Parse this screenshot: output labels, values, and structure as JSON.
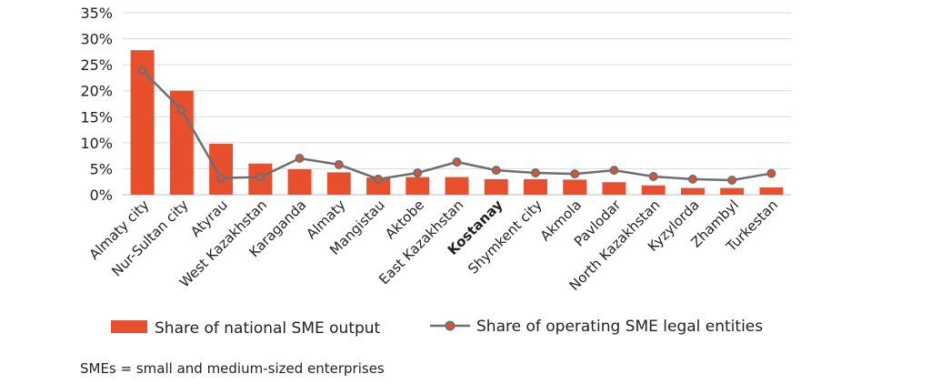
{
  "chart_data": {
    "type": "bar",
    "categories": [
      "Almaty city",
      "Nur-Sultan city",
      "Atyrau",
      "West Kazakhstan",
      "Karaganda",
      "Almaty",
      "Mangistau",
      "Aktobe",
      "East Kazakhstan",
      "Kostanay",
      "Shymkent city",
      "Akmola",
      "Pavlodar",
      "North Kazakhstan",
      "Kyzylorda",
      "Zhambyl",
      "Turkestan"
    ],
    "highlight_category": "Kostanay",
    "series": [
      {
        "name": "Share of national SME output",
        "type": "bar",
        "color": "#e8502d",
        "values": [
          27.8,
          20.0,
          9.8,
          6.0,
          4.9,
          4.3,
          3.3,
          3.4,
          3.4,
          3.0,
          3.0,
          2.9,
          2.4,
          1.8,
          1.3,
          1.3,
          1.4
        ]
      },
      {
        "name": "Share of operating SME legal entities",
        "type": "line",
        "color": "#6d6e71",
        "marker_color": "#e8502d",
        "values": [
          23.9,
          16.3,
          3.2,
          3.4,
          7.0,
          5.8,
          3.0,
          4.2,
          6.3,
          4.7,
          4.2,
          4.0,
          4.7,
          3.5,
          3.0,
          2.8,
          4.1
        ]
      }
    ],
    "y_ticks": [
      "0%",
      "5%",
      "10%",
      "15%",
      "20%",
      "25%",
      "30%",
      "35%"
    ],
    "ylim": [
      0,
      35
    ],
    "grid": true,
    "legend_position": "bottom",
    "title": "",
    "xlabel": "",
    "ylabel": ""
  },
  "footnote": "SMEs = small and medium-sized enterprises"
}
